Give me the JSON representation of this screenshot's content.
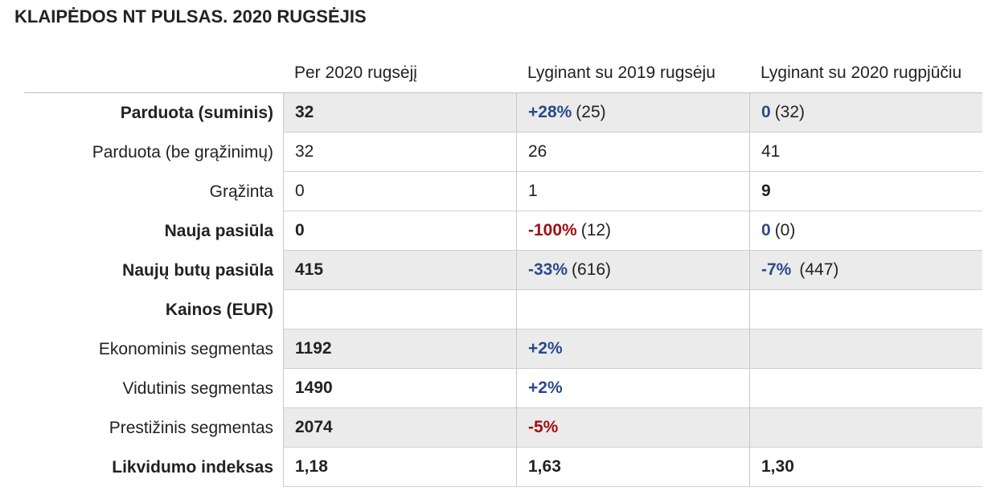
{
  "title": "KLAIPĖDOS NT PULSAS. 2020 RUGSĖJIS",
  "headers": [
    "",
    "Per 2020 rugsėjį",
    "Lyginant su 2019 rugsėju",
    "Lyginant su 2020 rugpjūčiu"
  ],
  "rows": [
    {
      "label": "Parduota (suminis)",
      "c1": "32",
      "c2_main": "+28%",
      "c2_extra": "(25)",
      "c3_main": "0",
      "c3_extra": "(32)"
    },
    {
      "label": "Parduota (be grąžinimų)",
      "c1": "32",
      "c2": "26",
      "c3": "41"
    },
    {
      "label": "Grąžinta",
      "c1": "0",
      "c2": "1",
      "c3": "9"
    },
    {
      "label": "Nauja pasiūla",
      "c1": "0",
      "c2_main": "-100%",
      "c2_extra": "(12)",
      "c3_main": "0",
      "c3_extra": "(0)"
    },
    {
      "label": "Naujų butų pasiūla",
      "c1": "415",
      "c2_main": "-33%",
      "c2_extra": "(616)",
      "c3_main": "-7%",
      "c3_extra": "(447)"
    },
    {
      "label": "Kainos (EUR)"
    },
    {
      "label": "Ekonominis segmentas",
      "c1": "1192",
      "c2": "+2%"
    },
    {
      "label": "Vidutinis segmentas",
      "c1": "1490",
      "c2": "+2%"
    },
    {
      "label": "Prestižinis segmentas",
      "c1": "2074",
      "c2": "-5%"
    },
    {
      "label": "Likvidumo indeksas",
      "c1": "1,18",
      "c2": "1,63",
      "c3": "1,30"
    }
  ],
  "colors": {
    "positive": "#2b4a8c",
    "negative": "#a01010",
    "shade": "#ebebeb"
  }
}
